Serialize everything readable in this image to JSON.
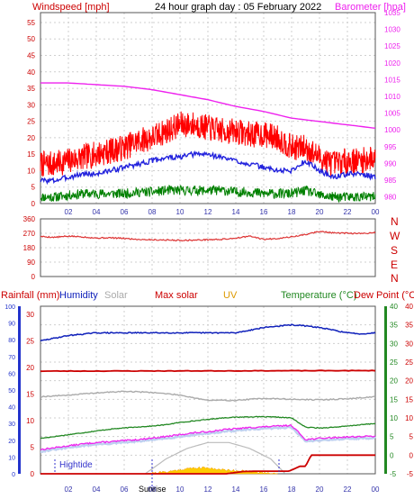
{
  "header": {
    "left_label": "Windspeed [mph]",
    "title": "24 hour graph day : 05 February 2022",
    "right_label": "Barometer [hpa]"
  },
  "direction_labels": [
    "N",
    "W",
    "S",
    "E",
    "N"
  ],
  "bottom_header": {
    "rainfall": "Rainfall (mm)",
    "humidity": "Humidity",
    "solar": "Solar",
    "max_solar": "Max solar",
    "uv": "UV",
    "temperature": "Temperature (°C)",
    "dew_point": "Dew Point (°C)"
  },
  "annotations": {
    "hightide": "Hightide",
    "sunrise": "Sunrise"
  },
  "colors": {
    "windspeed": "#ff0000",
    "wind_avg": "#2222dd",
    "wind_min": "#008000",
    "barometer": "#ee22ee",
    "direction": "#dd3333",
    "humidity": "#1122bb",
    "solar": "#aaaaaa",
    "max_solar": "#cc0000",
    "uv": "#ffcc00",
    "temperature": "#228822",
    "dew_point": "#ee22ee",
    "rain": "#cc0000",
    "tide_marker": "#3333cc"
  },
  "chart_data": [
    {
      "type": "line",
      "x_ticks": [
        "02",
        "04",
        "06",
        "08",
        "10",
        "12",
        "14",
        "16",
        "18",
        "20",
        "22",
        "00"
      ],
      "y_left_ticks": [
        "0",
        "5",
        "10",
        "15",
        "20",
        "25",
        "30",
        "35",
        "40",
        "45",
        "50",
        "55"
      ],
      "y_right_ticks": [
        "980",
        "985",
        "990",
        "995",
        "1000",
        "1005",
        "1010",
        "1015",
        "1020",
        "1025",
        "1030",
        "1035"
      ],
      "ylim_left": [
        0,
        58
      ],
      "ylim_right": [
        978,
        1035
      ],
      "series": [
        {
          "key": "gust",
          "axis": "left",
          "x": [
            0,
            1,
            2,
            3,
            4,
            5,
            6,
            7,
            8,
            9,
            10,
            11,
            12,
            13,
            14,
            15,
            16,
            17,
            18,
            19,
            20,
            21,
            22,
            23,
            24
          ],
          "values": [
            12,
            12,
            13,
            14,
            15,
            16,
            17,
            19,
            20,
            22,
            24,
            24,
            23,
            22,
            22,
            21,
            21,
            20,
            17,
            17,
            14,
            12,
            13,
            13,
            14
          ],
          "noise": 4
        },
        {
          "key": "average",
          "axis": "left",
          "x": [
            0,
            1,
            2,
            3,
            4,
            5,
            6,
            7,
            8,
            9,
            10,
            11,
            12,
            13,
            14,
            15,
            16,
            17,
            18,
            19,
            20,
            21,
            22,
            23,
            24
          ],
          "values": [
            7,
            7,
            8,
            9,
            9,
            10,
            11,
            12,
            13,
            14,
            14,
            15,
            15,
            14,
            13,
            12,
            11,
            10,
            10,
            13,
            10,
            8,
            9,
            9,
            8
          ],
          "noise": 0.8
        },
        {
          "key": "lull",
          "axis": "left",
          "x": [
            0,
            1,
            2,
            3,
            4,
            5,
            6,
            7,
            8,
            9,
            10,
            11,
            12,
            13,
            14,
            15,
            16,
            17,
            18,
            19,
            20,
            21,
            22,
            23,
            24
          ],
          "values": [
            2,
            2,
            2.5,
            3,
            3,
            3,
            3,
            3.5,
            3.5,
            4,
            4,
            4,
            4,
            4,
            3.5,
            3.5,
            3,
            3,
            3,
            4,
            2.5,
            2,
            2,
            2,
            2
          ],
          "noise": 1.5
        },
        {
          "key": "barometer",
          "axis": "right",
          "x": [
            0,
            2,
            4,
            6,
            8,
            10,
            12,
            14,
            16,
            18,
            20,
            22,
            24
          ],
          "values": [
            1014,
            1014,
            1013.5,
            1013,
            1012,
            1010.5,
            1009,
            1007,
            1005.5,
            1003.5,
            1002.5,
            1001.5,
            1000.5
          ],
          "noise": 0
        }
      ]
    },
    {
      "type": "line",
      "y_ticks": [
        "360",
        "270",
        "180",
        "90",
        "0"
      ],
      "ylim": [
        0,
        360
      ],
      "series": [
        {
          "key": "direction",
          "x": [
            0,
            1,
            2,
            3,
            4,
            5,
            6,
            7,
            8,
            9,
            10,
            11,
            12,
            13,
            14,
            15,
            16,
            17,
            18,
            19,
            20,
            21,
            22,
            23,
            24
          ],
          "values": [
            250,
            245,
            252,
            248,
            240,
            242,
            238,
            232,
            230,
            228,
            226,
            227,
            230,
            232,
            240,
            252,
            232,
            238,
            248,
            262,
            282,
            272,
            270,
            268,
            275
          ],
          "noise": 4
        }
      ]
    },
    {
      "type": "line",
      "x_ticks": [
        "02",
        "04",
        "06",
        "08",
        "10",
        "12",
        "14",
        "16",
        "18",
        "20",
        "22",
        "00"
      ],
      "y_humidity_ticks": [
        "0",
        "10",
        "20",
        "30",
        "40",
        "50",
        "60",
        "70",
        "80",
        "90",
        "100"
      ],
      "y_rain_ticks": [
        "0",
        "5",
        "10",
        "15",
        "20",
        "25",
        "30"
      ],
      "y_temp_ticks": [
        "-5",
        "0",
        "5",
        "10",
        "15",
        "20",
        "25",
        "30",
        "35",
        "40"
      ],
      "ylim_rain": [
        0,
        31.5
      ],
      "ylim_temp": [
        -5,
        40
      ],
      "series": [
        {
          "key": "humidity",
          "axis": "rain",
          "x": [
            0,
            2,
            4,
            6,
            8,
            10,
            12,
            14,
            16,
            18,
            19,
            20,
            22,
            23,
            24
          ],
          "values": [
            25,
            26,
            26.5,
            26.5,
            26.5,
            26.5,
            26.5,
            26.5,
            27.5,
            28,
            27.8,
            27.5,
            26.5,
            26.3,
            26.5
          ],
          "noise": 0.1
        },
        {
          "key": "max_solar",
          "axis": "rain",
          "x": [
            0,
            24
          ],
          "values": [
            19.3,
            19.4
          ],
          "noise": 0.05
        },
        {
          "key": "solar",
          "axis": "rain",
          "x": [
            0,
            2,
            4,
            6,
            8,
            10,
            12,
            14,
            16,
            18,
            20,
            22,
            24
          ],
          "values": [
            14.5,
            14.8,
            15.2,
            15.5,
            15.3,
            14.8,
            13.8,
            13.8,
            14.2,
            14.0,
            13.9,
            14.1,
            14.5
          ],
          "noise": 0.1
        },
        {
          "key": "temperature",
          "axis": "temp",
          "x": [
            0,
            1,
            2,
            3,
            4,
            5,
            6,
            7,
            8,
            9,
            10,
            11,
            12,
            13,
            14,
            15,
            16,
            17,
            18,
            19,
            20,
            21,
            22,
            23,
            24
          ],
          "values": [
            4.5,
            5,
            5.5,
            6,
            6.5,
            7,
            7.3,
            7.6,
            7.8,
            8.2,
            8.8,
            9.2,
            9.6,
            10,
            10.2,
            10.3,
            10.3,
            10.2,
            10,
            7.5,
            7.3,
            7.5,
            7.8,
            8.2,
            8.5
          ],
          "noise": 0.1
        },
        {
          "key": "dew_point",
          "axis": "temp",
          "x": [
            0,
            1,
            2,
            3,
            4,
            5,
            6,
            7,
            8,
            9,
            10,
            11,
            12,
            13,
            14,
            15,
            16,
            17,
            18,
            19,
            20,
            21,
            22,
            23,
            24
          ],
          "values": [
            1.5,
            2,
            2.5,
            3,
            3.4,
            3.6,
            3.9,
            4.2,
            4.6,
            5,
            5.5,
            6,
            6.3,
            6.8,
            7.1,
            7.4,
            7.6,
            7.8,
            8,
            4.2,
            4.5,
            4.7,
            4.9,
            5,
            5.1
          ],
          "noise": 0.2
        },
        {
          "key": "rain",
          "axis": "temp",
          "x": [
            0,
            13.3,
            14.5,
            15.5,
            17.8,
            18.6,
            19,
            19.4,
            20,
            22,
            24
          ],
          "values": [
            -5,
            -5,
            -4.4,
            -4.3,
            -4.3,
            -3,
            -3,
            0,
            0,
            0,
            0
          ],
          "noise": 0
        },
        {
          "key": "solar_arc",
          "axis": "temp",
          "x": [
            7.5,
            9,
            10.5,
            12,
            13.5,
            15,
            16.5,
            17.5
          ],
          "values": [
            -5,
            -1,
            1.8,
            3.4,
            3.4,
            1.8,
            -1,
            -4.8
          ],
          "noise": 0
        },
        {
          "key": "uv_fill",
          "axis": "temp",
          "x": [
            7.5,
            9,
            10,
            11,
            12,
            13,
            14,
            15,
            16,
            17
          ],
          "values": [
            -5,
            -4.6,
            -4,
            -3.5,
            -3.5,
            -4.0,
            -4.2,
            -4.5,
            -4.8,
            -5
          ],
          "noise": 0
        }
      ]
    }
  ]
}
